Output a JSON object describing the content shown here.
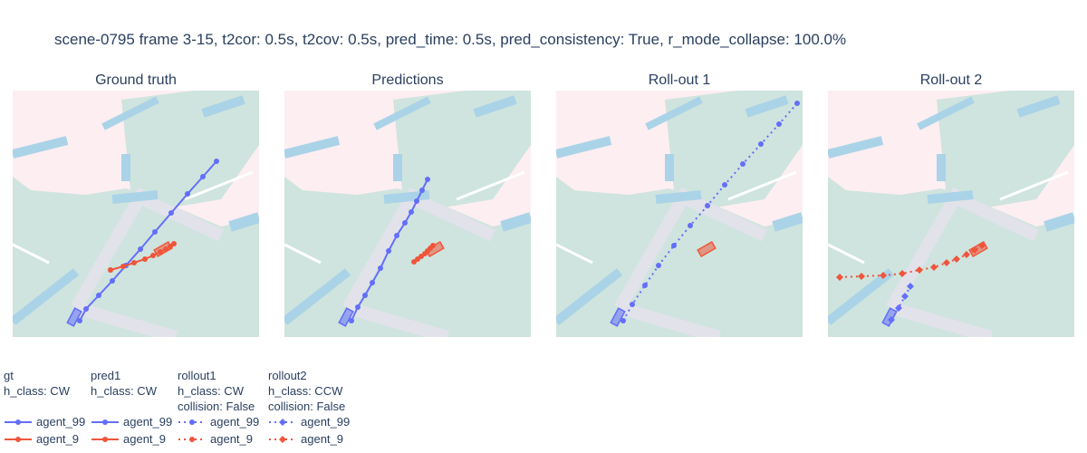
{
  "title": "scene-0795 frame 3-15, t2cor: 0.5s, t2cov: 0.5s, pred_time: 0.5s, pred_consistency: True, r_mode_collapse: 100.0%",
  "colors": {
    "agent_99": "#636efa",
    "agent_9": "#ef553b",
    "background": "#fdeef2",
    "drivable": "#cfe4de",
    "crosswalk": "#aad3e8",
    "lane": "#e2e2ea"
  },
  "chart_data": [
    {
      "type": "scatter",
      "title": "Ground truth",
      "legend_group": "gt",
      "series": [
        {
          "name": "agent_99",
          "mode": "lines+markers",
          "dash": "solid",
          "marker": "circle",
          "x": [
            74,
            81,
            95,
            110,
            125,
            141,
            157,
            175,
            193,
            210,
            225
          ],
          "y": [
            254,
            241,
            226,
            210,
            193,
            175,
            156,
            135,
            114,
            95,
            78
          ]
        },
        {
          "name": "agent_9",
          "mode": "lines+markers",
          "dash": "solid",
          "marker": "circle",
          "x": [
            108,
            122,
            134,
            146,
            155,
            163,
            169,
            174,
            178
          ],
          "y": [
            198,
            194,
            190,
            186,
            182,
            178,
            175,
            172,
            169
          ]
        }
      ]
    },
    {
      "type": "scatter",
      "title": "Predictions",
      "legend_group": "pred1",
      "series": [
        {
          "name": "agent_99",
          "mode": "lines+markers",
          "dash": "solid",
          "marker": "circle",
          "x": [
            74,
            81,
            89,
            97,
            106,
            115,
            124,
            133,
            140,
            146,
            152,
            158
          ],
          "y": [
            254,
            239,
            226,
            212,
            196,
            177,
            160,
            146,
            134,
            122,
            110,
            98
          ]
        },
        {
          "name": "agent_9",
          "mode": "lines+markers",
          "dash": "solid",
          "marker": "circle",
          "x": [
            143,
            147,
            151,
            155,
            158,
            161,
            164
          ],
          "y": [
            189,
            186,
            183,
            180,
            177,
            174,
            171
          ]
        }
      ]
    },
    {
      "type": "scatter",
      "title": "Roll-out 1",
      "legend_group": "rollout1",
      "series": [
        {
          "name": "agent_99",
          "mode": "lines+markers",
          "dash": "dot",
          "marker": "circle",
          "x": [
            74,
            84,
            98,
            113,
            130,
            148,
            167,
            186,
            206,
            226,
            246,
            266
          ],
          "y": [
            254,
            236,
            215,
            193,
            171,
            149,
            127,
            104,
            81,
            59,
            37,
            14
          ]
        }
      ]
    },
    {
      "type": "scatter",
      "title": "Roll-out 2",
      "legend_group": "rollout2",
      "series": [
        {
          "name": "agent_99",
          "mode": "lines+markers",
          "dash": "dot",
          "marker": "diamond",
          "x": [
            70,
            78,
            85,
            91
          ],
          "y": [
            253,
            240,
            227,
            216
          ]
        },
        {
          "name": "agent_9",
          "mode": "lines+markers",
          "dash": "dot",
          "marker": "diamond",
          "x": [
            13,
            37,
            61,
            82,
            101,
            117,
            131,
            142,
            153,
            162,
            170
          ],
          "y": [
            206,
            205,
            204,
            202,
            198,
            195,
            190,
            186,
            181,
            176,
            171
          ]
        }
      ]
    }
  ],
  "legend": {
    "groups": [
      {
        "id": "gt",
        "lines": [
          "gt",
          "h_class: CW"
        ],
        "items": [
          {
            "name": "agent_99",
            "dash": "solid",
            "marker": "circle"
          },
          {
            "name": "agent_9",
            "dash": "solid",
            "marker": "circle"
          }
        ]
      },
      {
        "id": "pred1",
        "lines": [
          "pred1",
          "h_class: CW"
        ],
        "items": [
          {
            "name": "agent_99",
            "dash": "solid",
            "marker": "circle"
          },
          {
            "name": "agent_9",
            "dash": "solid",
            "marker": "circle"
          }
        ]
      },
      {
        "id": "rollout1",
        "lines": [
          "rollout1",
          "h_class: CW",
          "collision: False"
        ],
        "items": [
          {
            "name": "agent_99",
            "dash": "dot",
            "marker": "circle"
          },
          {
            "name": "agent_9",
            "dash": "dot",
            "marker": "circle"
          }
        ]
      },
      {
        "id": "rollout2",
        "lines": [
          "rollout2",
          "h_class: CCW",
          "collision: False"
        ],
        "items": [
          {
            "name": "agent_99",
            "dash": "dot",
            "marker": "diamond"
          },
          {
            "name": "agent_9",
            "dash": "dot",
            "marker": "diamond"
          }
        ]
      }
    ]
  }
}
